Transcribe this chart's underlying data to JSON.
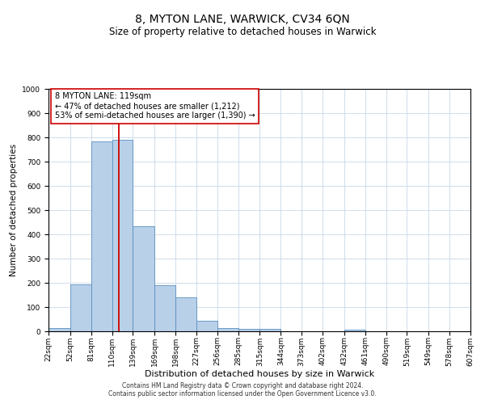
{
  "title": "8, MYTON LANE, WARWICK, CV34 6QN",
  "subtitle": "Size of property relative to detached houses in Warwick",
  "xlabel": "Distribution of detached houses by size in Warwick",
  "ylabel": "Number of detached properties",
  "footer_line1": "Contains HM Land Registry data © Crown copyright and database right 2024.",
  "footer_line2": "Contains public sector information licensed under the Open Government Licence v3.0.",
  "annotation_line1": "8 MYTON LANE: 119sqm",
  "annotation_line2": "← 47% of detached houses are smaller (1,212)",
  "annotation_line3": "53% of semi-detached houses are larger (1,390) →",
  "red_line_x": 119,
  "bin_edges": [
    22,
    52,
    81,
    110,
    139,
    169,
    198,
    227,
    256,
    285,
    315,
    344,
    373,
    402,
    432,
    461,
    490,
    519,
    549,
    578,
    607
  ],
  "bin_labels": [
    "22sqm",
    "52sqm",
    "81sqm",
    "110sqm",
    "139sqm",
    "169sqm",
    "198sqm",
    "227sqm",
    "256sqm",
    "285sqm",
    "315sqm",
    "344sqm",
    "373sqm",
    "402sqm",
    "432sqm",
    "461sqm",
    "490sqm",
    "519sqm",
    "549sqm",
    "578sqm",
    "607sqm"
  ],
  "bar_heights": [
    15,
    195,
    785,
    790,
    435,
    190,
    140,
    45,
    15,
    10,
    10,
    0,
    0,
    0,
    8,
    0,
    0,
    0,
    0,
    0
  ],
  "bar_color": "#b8d0e8",
  "bar_edge_color": "#5a8fc0",
  "red_line_color": "#cc0000",
  "grid_color": "#c8d8e8",
  "background_color": "#ffffff",
  "ylim": [
    0,
    1000
  ],
  "yticks": [
    0,
    100,
    200,
    300,
    400,
    500,
    600,
    700,
    800,
    900,
    1000
  ],
  "title_fontsize": 10,
  "subtitle_fontsize": 8.5,
  "ylabel_fontsize": 7.5,
  "xlabel_fontsize": 8,
  "tick_fontsize": 6.5,
  "annotation_fontsize": 7,
  "footer_fontsize": 5.5
}
